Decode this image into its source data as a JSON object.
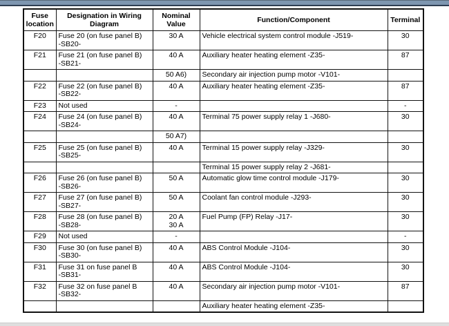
{
  "page": {
    "colors": {
      "accent_bar": "#7E96B0",
      "accent_bar_edge": "#2E3E52",
      "footer_strip": "#DEDEDE",
      "table_border": "#111111"
    }
  },
  "table": {
    "headers": [
      "Fuse location",
      "Designation in Wiring Diagram",
      "Nominal Value",
      "Function/Component",
      "Terminal"
    ],
    "rows": [
      {
        "fuse": "F20",
        "designation": "Fuse 20 (on fuse panel B)\n-SB20-",
        "nominal": "30 A",
        "function": "Vehicle electrical system control module -J519-",
        "terminal": "30"
      },
      {
        "fuse": "F21",
        "designation": "Fuse 21 (on fuse panel B)\n-SB21-",
        "nominal": "40 A",
        "function": "Auxiliary heater heating element -Z35-",
        "terminal": "87"
      },
      {
        "fuse": "",
        "designation": "",
        "nominal": "50 A6)",
        "function": "Secondary air injection pump motor -V101-",
        "terminal": ""
      },
      {
        "fuse": "F22",
        "designation": "Fuse 22 (on fuse panel B)\n-SB22-",
        "nominal": "40 A",
        "function": "Auxiliary heater heating element -Z35-",
        "terminal": "87"
      },
      {
        "fuse": "F23",
        "designation": "Not used",
        "nominal": "-",
        "function": "",
        "terminal": "-"
      },
      {
        "fuse": "F24",
        "designation": "Fuse 24 (on fuse panel B)\n-SB24-",
        "nominal": "40 A",
        "function": "Terminal 75 power supply relay 1 -J680-",
        "terminal": "30"
      },
      {
        "fuse": "",
        "designation": "",
        "nominal": "50 A7)",
        "function": "",
        "terminal": ""
      },
      {
        "fuse": "F25",
        "designation": "Fuse 25 (on fuse panel B)\n-SB25-",
        "nominal": "40 A",
        "function": "Terminal 15 power supply relay -J329-",
        "terminal": "30"
      },
      {
        "fuse": "",
        "designation": "",
        "nominal": "",
        "function": "Terminal 15 power supply relay 2 -J681-",
        "terminal": ""
      },
      {
        "fuse": "F26",
        "designation": "Fuse 26 (on fuse panel B)\n-SB26-",
        "nominal": "50 A",
        "function": "Automatic glow time control module -J179-",
        "terminal": "30"
      },
      {
        "fuse": "F27",
        "designation": "Fuse 27 (on fuse panel B)\n-SB27-",
        "nominal": "50 A",
        "function": "Coolant fan control module -J293-",
        "terminal": "30"
      },
      {
        "fuse": "F28",
        "designation": "Fuse 28 (on fuse panel B)\n-SB28-",
        "nominal": "20 A\n30 A",
        "function": "Fuel Pump (FP) Relay -J17-",
        "terminal": "30"
      },
      {
        "fuse": "F29",
        "designation": "Not used",
        "nominal": "-",
        "function": "",
        "terminal": "-"
      },
      {
        "fuse": "F30",
        "designation": "Fuse 30 (on fuse panel B)\n-SB30-",
        "nominal": "40 A",
        "function": "ABS Control Module -J104-",
        "terminal": "30"
      },
      {
        "fuse": "F31",
        "designation": "Fuse 31 on fuse panel B\n-SB31-",
        "nominal": "40 A",
        "function": "ABS Control Module -J104-",
        "terminal": "30"
      },
      {
        "fuse": "F32",
        "designation": "Fuse 32 on fuse panel B\n-SB32-",
        "nominal": "40 A",
        "function": "Secondary air injection pump motor -V101-",
        "terminal": "87"
      },
      {
        "fuse": "",
        "designation": "",
        "nominal": "",
        "function": "Auxiliary heater heating element -Z35-",
        "terminal": ""
      }
    ]
  }
}
